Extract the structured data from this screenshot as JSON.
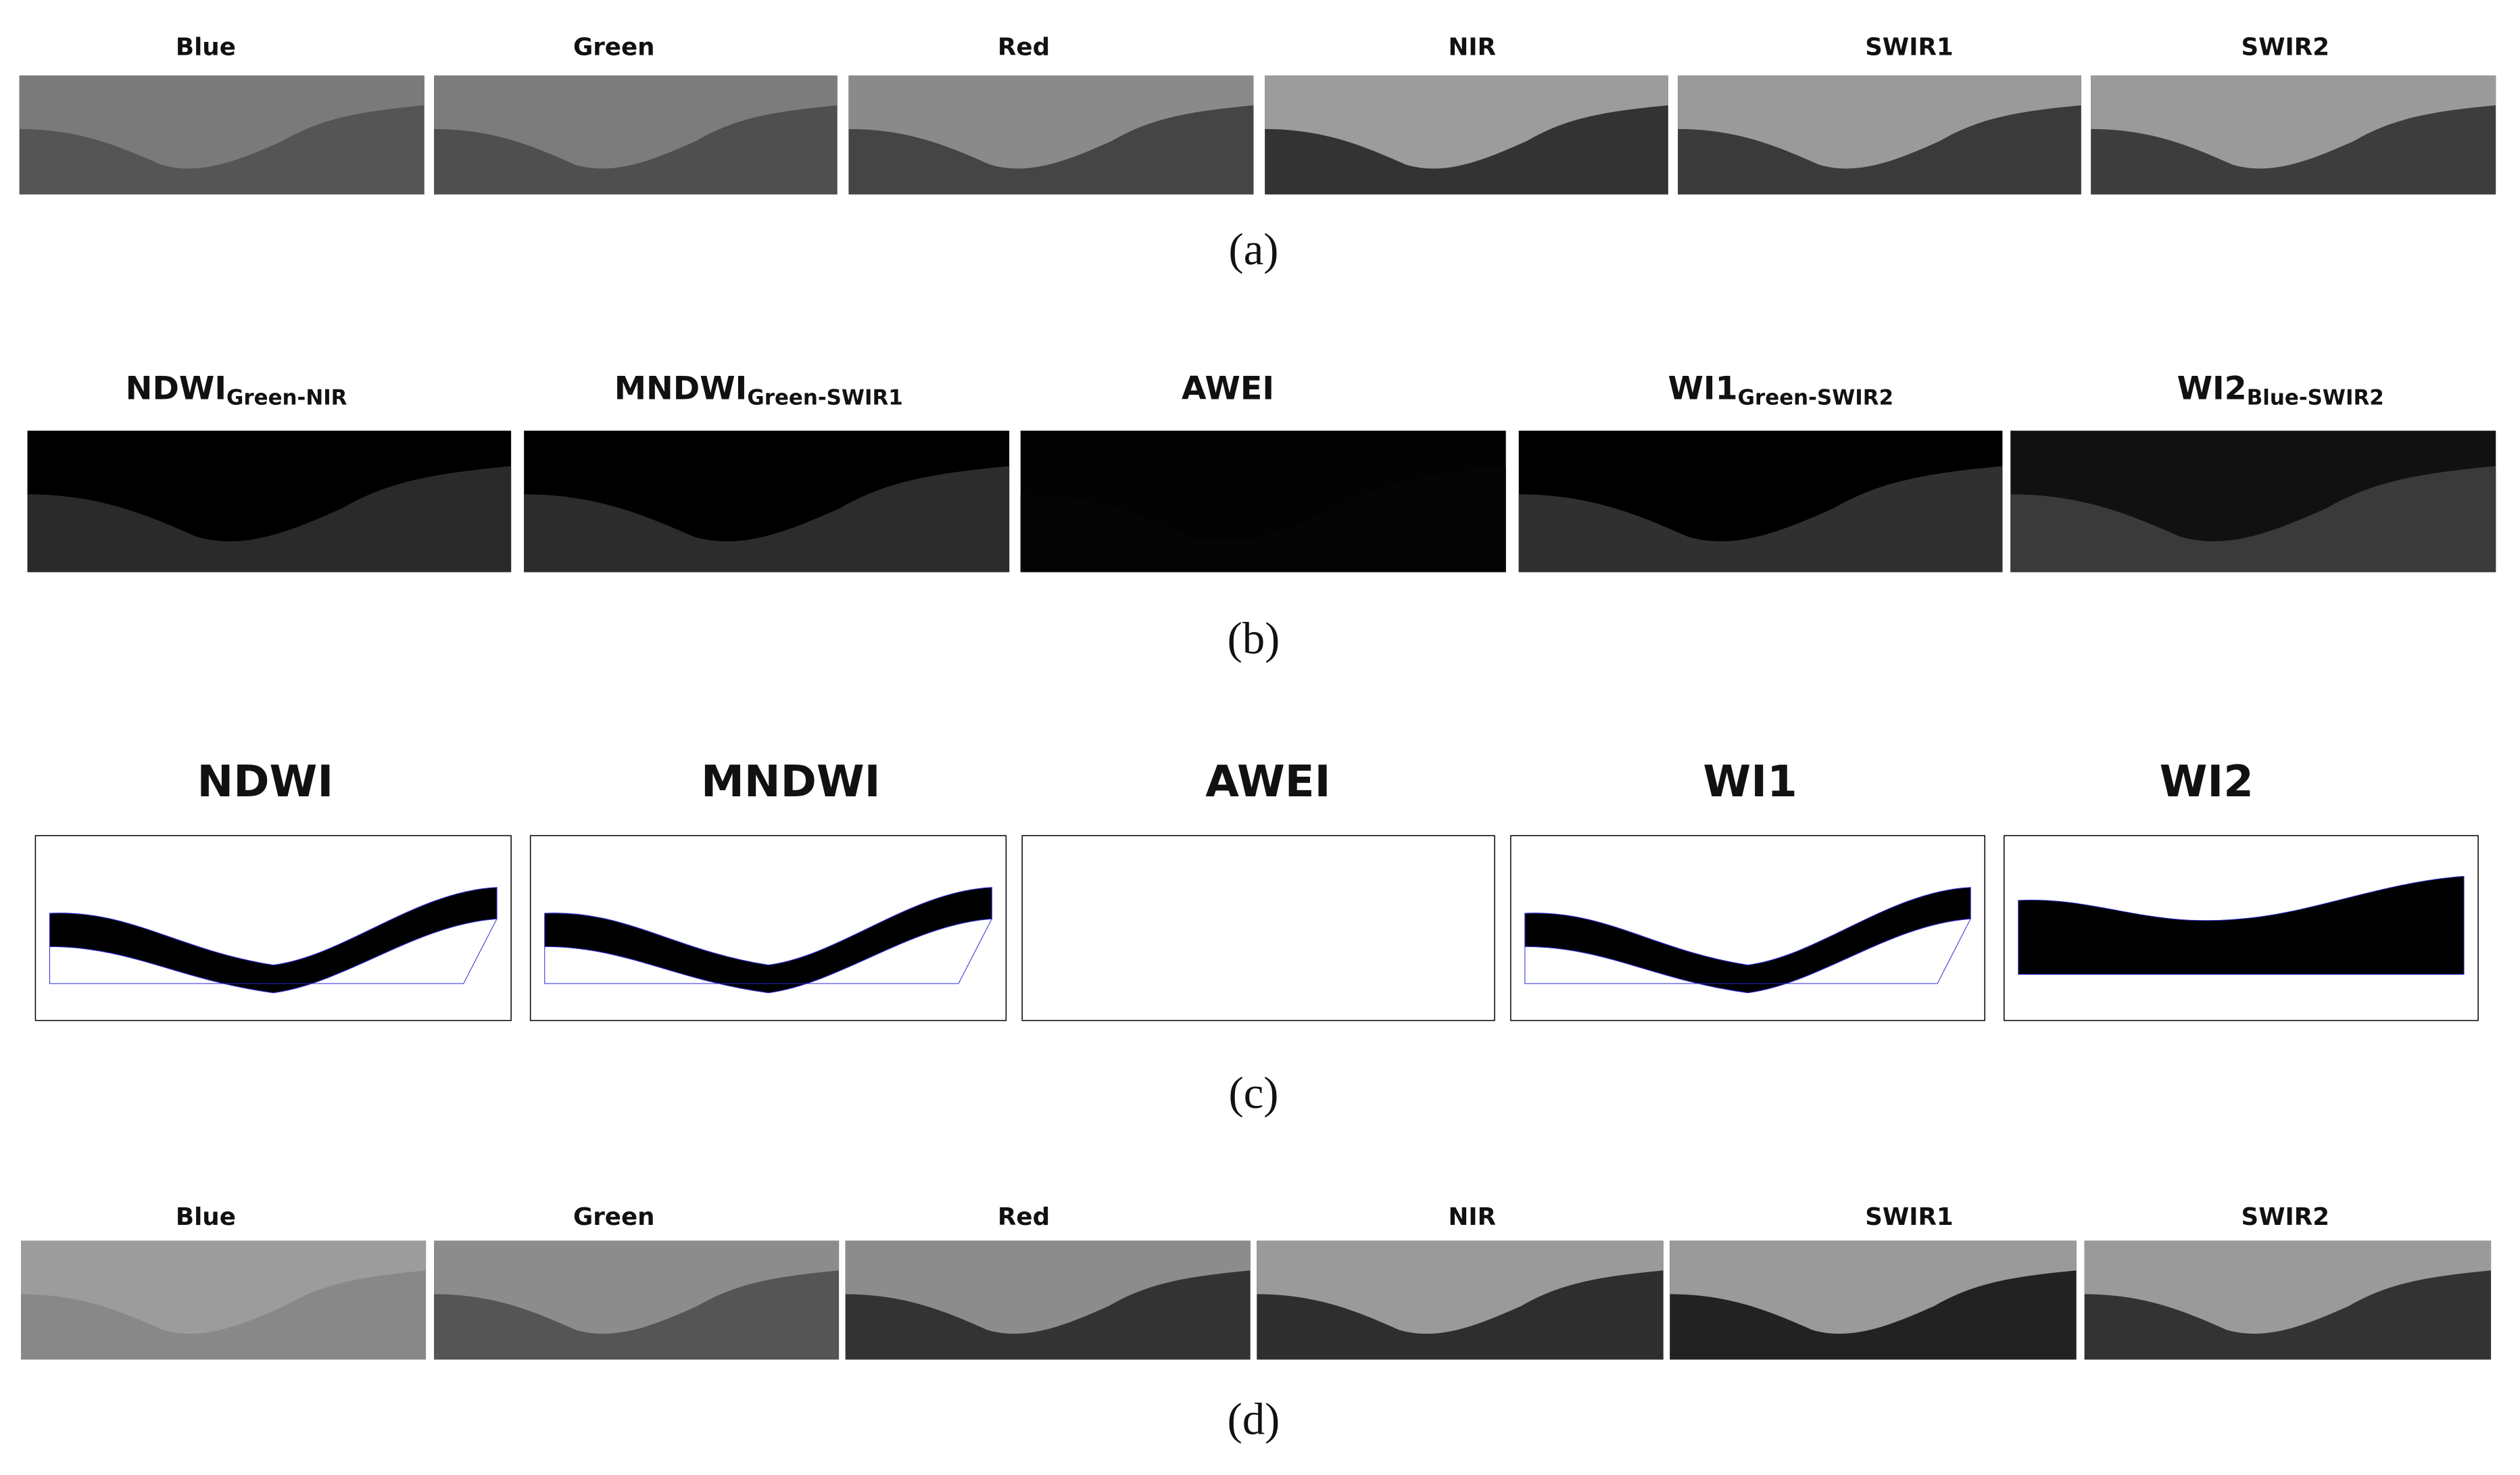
{
  "rows": [
    {
      "label": "(a)",
      "panels": [
        {
          "title": "Blue"
        },
        {
          "title": "Green"
        },
        {
          "title": "Red"
        },
        {
          "title": "NIR"
        },
        {
          "title": "SWIR1"
        },
        {
          "title": "SWIR2"
        }
      ]
    },
    {
      "label": "(b)",
      "panels": [
        {
          "title": "NDWI",
          "subscript": "Green-NIR"
        },
        {
          "title": "MNDWI",
          "subscript": "Green-SWIR1"
        },
        {
          "title": "AWEI"
        },
        {
          "title": "WI1",
          "subscript": "Green-SWIR2"
        },
        {
          "title": "WI2",
          "subscript": "Blue-SWIR2"
        }
      ]
    },
    {
      "label": "(c)",
      "panels": [
        {
          "title": "NDWI"
        },
        {
          "title": "MNDWI"
        },
        {
          "title": "AWEI"
        },
        {
          "title": "WI1"
        },
        {
          "title": "WI2"
        }
      ]
    },
    {
      "label": "(d)",
      "panels": [
        {
          "title": "Blue"
        },
        {
          "title": "Green"
        },
        {
          "title": "Red"
        },
        {
          "title": "NIR"
        },
        {
          "title": "SWIR1"
        },
        {
          "title": "SWIR2"
        }
      ]
    }
  ]
}
